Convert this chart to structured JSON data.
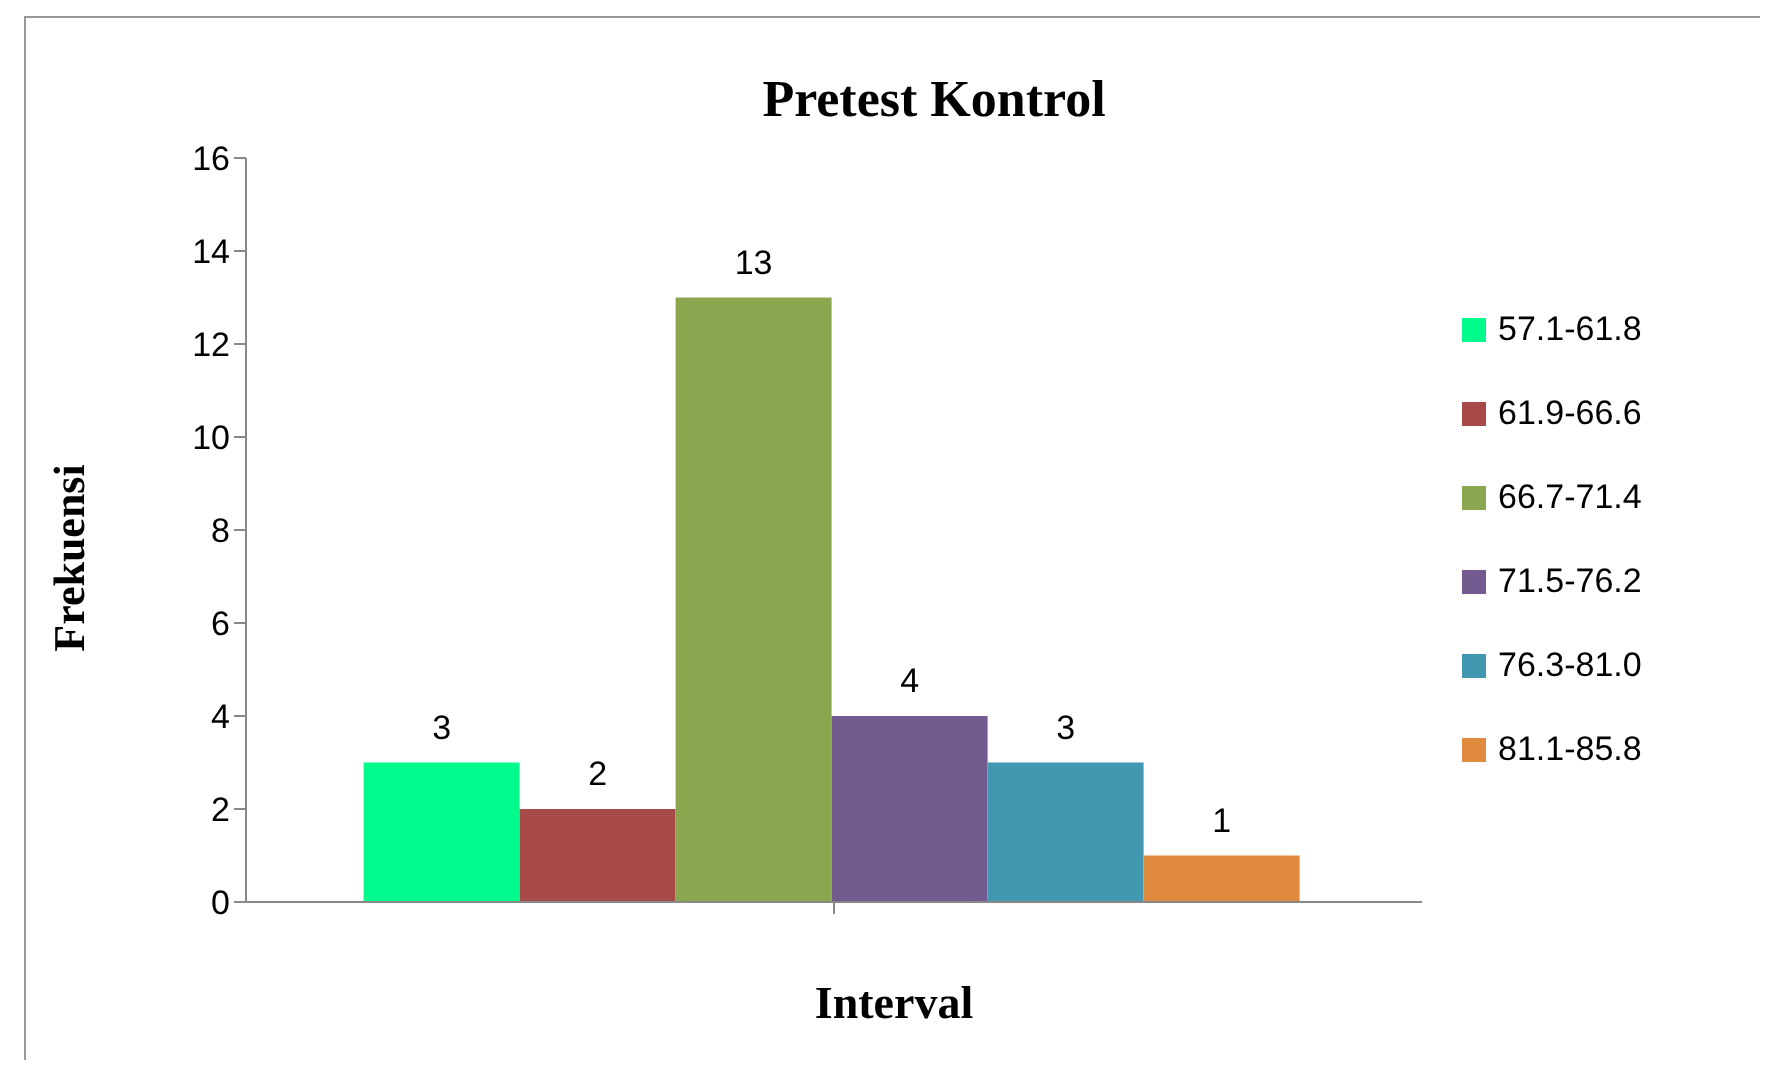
{
  "chart_data": {
    "type": "bar",
    "title": "Pretest Kontrol",
    "xlabel": "Interval",
    "ylabel": "Frekuensi",
    "categories": [
      null
    ],
    "series": [
      {
        "name": "57.1-61.8",
        "color": "#00fa8c",
        "values": [
          3
        ]
      },
      {
        "name": "61.9-66.6",
        "color": "#a84a48",
        "values": [
          2
        ]
      },
      {
        "name": "66.7-71.4",
        "color": "#8aa64e",
        "values": [
          13
        ]
      },
      {
        "name": "71.5-76.2",
        "color": "#735a8f",
        "values": [
          4
        ]
      },
      {
        "name": "76.3-81.0",
        "color": "#4198b0",
        "values": [
          3
        ]
      },
      {
        "name": "81.1-85.8",
        "color": "#df8a3e",
        "values": [
          1
        ]
      }
    ],
    "ylim": [
      0,
      16
    ],
    "yticks": [
      0,
      2,
      4,
      6,
      8,
      10,
      12,
      14,
      16
    ],
    "grid": false,
    "legend": "right",
    "data_labels": true
  }
}
